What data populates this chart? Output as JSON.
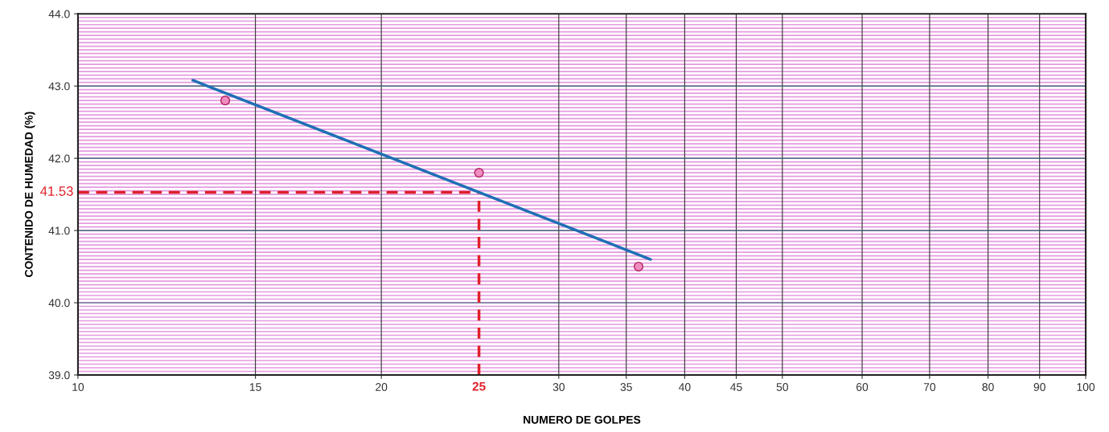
{
  "chart_data": {
    "type": "scatter",
    "xlabel": "NUMERO DE GOLPES",
    "ylabel": "CONTENIDO DE HUMEDAD (%)",
    "log": "x",
    "xlim": [
      10,
      100
    ],
    "xticks": [
      10,
      15,
      20,
      30,
      35,
      40,
      45,
      50,
      60,
      70,
      80,
      90,
      100
    ],
    "ylim": [
      39,
      44
    ],
    "yticks": [
      {
        "value": 39,
        "label": "39.0"
      },
      {
        "value": 40,
        "label": "40.0"
      },
      {
        "value": 41,
        "label": "41.0"
      },
      {
        "value": 42,
        "label": "42.0"
      },
      {
        "value": 43,
        "label": "43.0"
      },
      {
        "value": 44,
        "label": "44.0"
      }
    ],
    "grid": true,
    "series": [
      {
        "marker": "circle",
        "color": "#f08cc0",
        "x": [
          14,
          25,
          36
        ],
        "values": [
          42.8,
          41.8,
          40.5
        ]
      },
      {
        "type": "line",
        "marker": "none",
        "color": "#1f6fb5",
        "x": [
          13,
          37
        ],
        "values": [
          43.08,
          40.6
        ]
      }
    ],
    "ref_lines": [
      {
        "axis": "y",
        "value": 41.53,
        "label": "41.53",
        "color": "#e0202a",
        "line_style": "dashed"
      },
      {
        "axis": "x",
        "value": 25,
        "label": "25",
        "color": "#e0202a",
        "line_style": "dashed"
      }
    ]
  }
}
